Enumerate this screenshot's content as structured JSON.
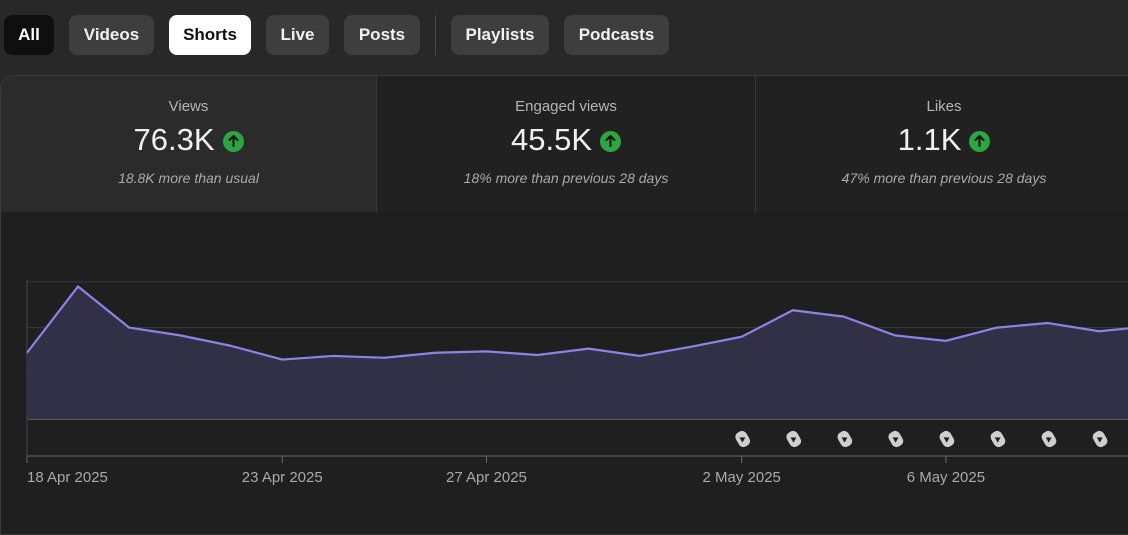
{
  "tabs": [
    {
      "label": "All"
    },
    {
      "label": "Videos"
    },
    {
      "label": "Shorts"
    },
    {
      "label": "Live"
    },
    {
      "label": "Posts"
    },
    {
      "label": "Playlists"
    },
    {
      "label": "Podcasts"
    }
  ],
  "active_tab": "Shorts",
  "metrics": [
    {
      "label": "Views",
      "value": "76.3K",
      "sub": "18.8K more than usual"
    },
    {
      "label": "Engaged views",
      "value": "45.5K",
      "sub": "18% more than previous 28 days"
    },
    {
      "label": "Likes",
      "value": "1.1K",
      "sub": "47% more than previous 28 days"
    }
  ],
  "colors": {
    "line": "#8b83e6",
    "area": "#34324a",
    "up": "#2ba640"
  },
  "chart_data": {
    "type": "area",
    "title": "Views",
    "x_index_range": [
      0,
      21.6
    ],
    "y_range": [
      0,
      3
    ],
    "x_tick_labels": [
      {
        "label": "18 Apr 2025",
        "index": 0
      },
      {
        "label": "23 Apr 2025",
        "index": 5
      },
      {
        "label": "27 Apr 2025",
        "index": 9
      },
      {
        "label": "2 May 2025",
        "index": 14
      },
      {
        "label": "6 May 2025",
        "index": 18
      }
    ],
    "gridlines": [
      1,
      2,
      3
    ],
    "values": [
      1.45,
      2.9,
      2.0,
      1.83,
      1.6,
      1.3,
      1.38,
      1.34,
      1.45,
      1.48,
      1.4,
      1.54,
      1.38,
      1.58,
      1.8,
      2.38,
      2.24,
      1.83,
      1.71,
      2.0,
      2.1,
      1.92,
      2.03
    ],
    "short_markers_at": [
      14,
      15,
      16,
      17,
      18,
      19,
      20,
      21
    ]
  }
}
